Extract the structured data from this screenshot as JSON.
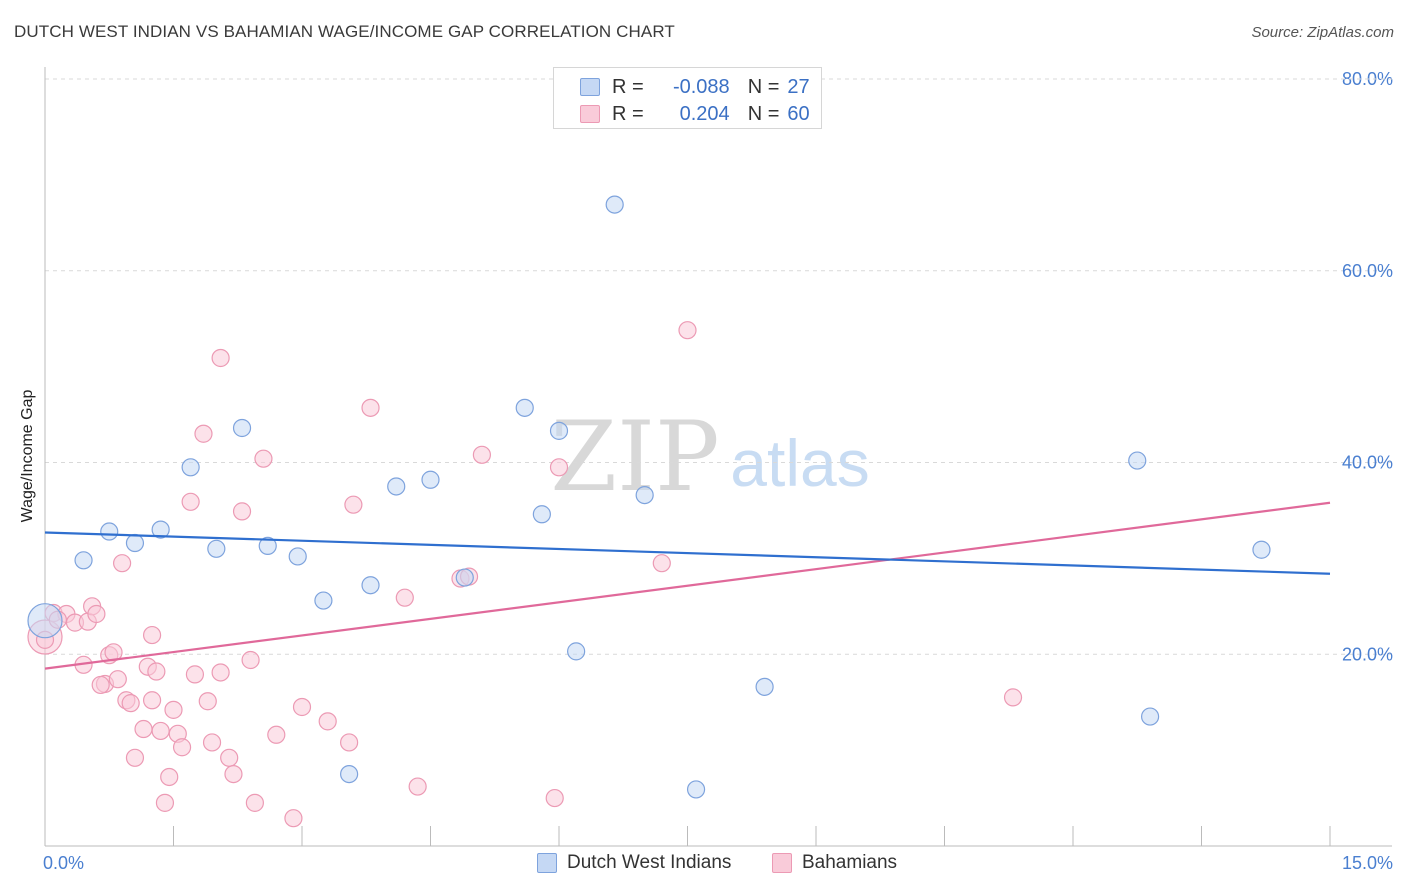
{
  "title": "DUTCH WEST INDIAN VS BAHAMIAN WAGE/INCOME GAP CORRELATION CHART",
  "source": "Source: ZipAtlas.com",
  "watermark": {
    "zip": "ZIP",
    "atlas": "atlas"
  },
  "colors": {
    "blue_fill": "#c5d8f4",
    "blue_stroke": "#7ea3dd",
    "blue_line": "#2f6fcf",
    "pink_fill": "#f9cbd9",
    "pink_stroke": "#ec9ab4",
    "pink_line": "#e0699a",
    "axis_text": "#4a7fd0",
    "grid": "#d9d9d9"
  },
  "legend": {
    "rows": [
      {
        "r_label": "R =",
        "r_value": "-0.088",
        "n_label": "N =",
        "n_value": "27"
      },
      {
        "r_label": "R =",
        "r_value": "0.204",
        "n_label": "N =",
        "n_value": "60"
      }
    ]
  },
  "bottom_legend": {
    "series1": "Dutch West Indians",
    "series2": "Bahamians"
  },
  "chart_data": {
    "type": "scatter",
    "xlabel": "",
    "ylabel": "Wage/Income Gap",
    "xlim": [
      0,
      15
    ],
    "ylim": [
      0,
      80
    ],
    "x_tick_labels": [
      "0.0%",
      "15.0%"
    ],
    "y_ticks": [
      20,
      40,
      60,
      80
    ],
    "y_tick_labels": [
      "20.0%",
      "40.0%",
      "60.0%",
      "80.0%"
    ],
    "grid": true,
    "series": [
      {
        "name": "Dutch West Indians",
        "points": [
          [
            0.0,
            23.5
          ],
          [
            0.45,
            29.8
          ],
          [
            0.75,
            32.8
          ],
          [
            1.05,
            31.6
          ],
          [
            1.35,
            33.0
          ],
          [
            1.7,
            39.5
          ],
          [
            2.0,
            31.0
          ],
          [
            2.3,
            43.6
          ],
          [
            2.6,
            31.3
          ],
          [
            2.95,
            30.2
          ],
          [
            3.25,
            25.6
          ],
          [
            3.55,
            7.5
          ],
          [
            3.8,
            27.2
          ],
          [
            4.1,
            37.5
          ],
          [
            4.5,
            38.2
          ],
          [
            4.9,
            28.0
          ],
          [
            5.6,
            45.7
          ],
          [
            5.8,
            34.6
          ],
          [
            6.0,
            43.3
          ],
          [
            6.2,
            20.3
          ],
          [
            6.65,
            66.9
          ],
          [
            7.0,
            36.6
          ],
          [
            7.6,
            5.9
          ],
          [
            8.4,
            16.6
          ],
          [
            12.75,
            40.2
          ],
          [
            12.9,
            13.5
          ],
          [
            14.2,
            30.9
          ]
        ],
        "trend": {
          "x": [
            0,
            15
          ],
          "y": [
            32.7,
            28.4
          ]
        }
      },
      {
        "name": "Bahamians",
        "points": [
          [
            0.0,
            21.8
          ],
          [
            0.1,
            24.3
          ],
          [
            0.25,
            24.2
          ],
          [
            0.35,
            23.3
          ],
          [
            0.45,
            18.9
          ],
          [
            0.5,
            23.4
          ],
          [
            0.55,
            25.0
          ],
          [
            0.6,
            24.2
          ],
          [
            0.7,
            16.9
          ],
          [
            0.75,
            19.9
          ],
          [
            0.8,
            20.2
          ],
          [
            0.85,
            17.4
          ],
          [
            0.9,
            29.5
          ],
          [
            0.95,
            15.2
          ],
          [
            1.0,
            14.9
          ],
          [
            1.05,
            9.2
          ],
          [
            1.15,
            12.2
          ],
          [
            1.2,
            18.7
          ],
          [
            1.25,
            15.2
          ],
          [
            1.3,
            18.2
          ],
          [
            1.35,
            12.0
          ],
          [
            1.4,
            4.5
          ],
          [
            1.45,
            7.2
          ],
          [
            1.5,
            14.2
          ],
          [
            1.55,
            11.7
          ],
          [
            1.6,
            10.3
          ],
          [
            1.7,
            35.9
          ],
          [
            1.75,
            17.9
          ],
          [
            1.85,
            43.0
          ],
          [
            1.9,
            15.1
          ],
          [
            1.95,
            10.8
          ],
          [
            2.05,
            18.1
          ],
          [
            2.05,
            50.9
          ],
          [
            2.15,
            9.2
          ],
          [
            2.2,
            7.5
          ],
          [
            2.3,
            34.9
          ],
          [
            2.4,
            19.4
          ],
          [
            2.45,
            4.5
          ],
          [
            2.55,
            40.4
          ],
          [
            2.7,
            11.6
          ],
          [
            2.9,
            2.9
          ],
          [
            3.0,
            14.5
          ],
          [
            3.3,
            13.0
          ],
          [
            3.55,
            10.8
          ],
          [
            3.6,
            35.6
          ],
          [
            3.8,
            45.7
          ],
          [
            4.2,
            25.9
          ],
          [
            4.35,
            6.2
          ],
          [
            4.85,
            27.9
          ],
          [
            4.95,
            28.1
          ],
          [
            5.1,
            40.8
          ],
          [
            5.95,
            5.0
          ],
          [
            6.0,
            39.5
          ],
          [
            7.2,
            29.5
          ],
          [
            7.5,
            53.8
          ],
          [
            11.3,
            15.5
          ],
          [
            0.0,
            21.5
          ],
          [
            0.15,
            23.6
          ],
          [
            0.65,
            16.8
          ],
          [
            1.25,
            22.0
          ]
        ],
        "trend": {
          "x": [
            0,
            15
          ],
          "y": [
            18.5,
            35.8
          ]
        }
      }
    ]
  }
}
